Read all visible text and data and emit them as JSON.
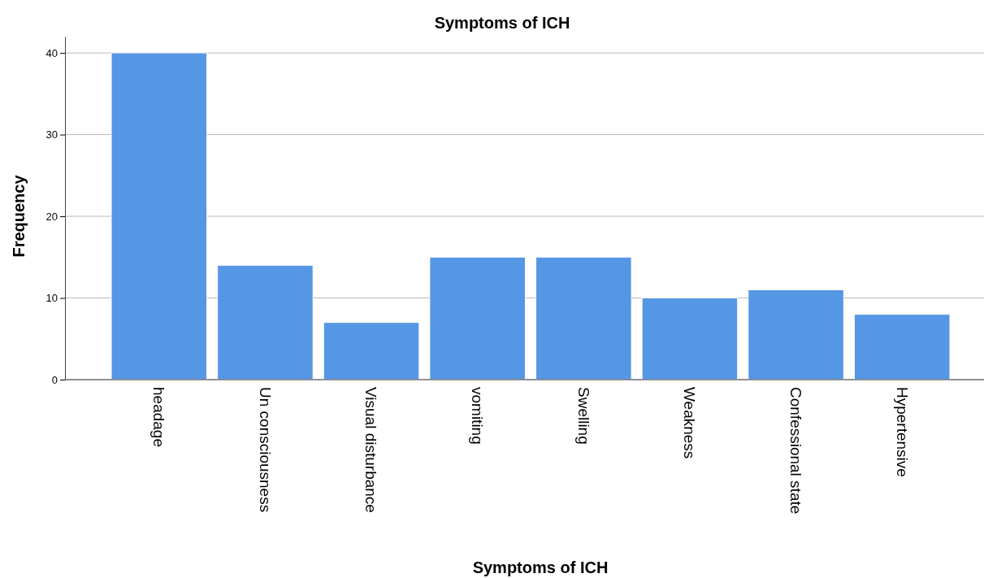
{
  "chart_data": {
    "type": "bar",
    "title": "Symptoms of ICH",
    "xlabel": "Symptoms of ICH",
    "ylabel": "Frequency",
    "categories": [
      "headage",
      "Un consciousness",
      "Visual disturbance",
      "vomiting",
      "Swelling",
      "Weakness",
      "Confessional state",
      "Hypertensive"
    ],
    "values": [
      40,
      14,
      7,
      15,
      15,
      10,
      11,
      8
    ],
    "color": "#5596e5",
    "ylim": [
      0,
      42
    ],
    "yticks": [
      0,
      10,
      20,
      30,
      40
    ],
    "grid": "y"
  }
}
